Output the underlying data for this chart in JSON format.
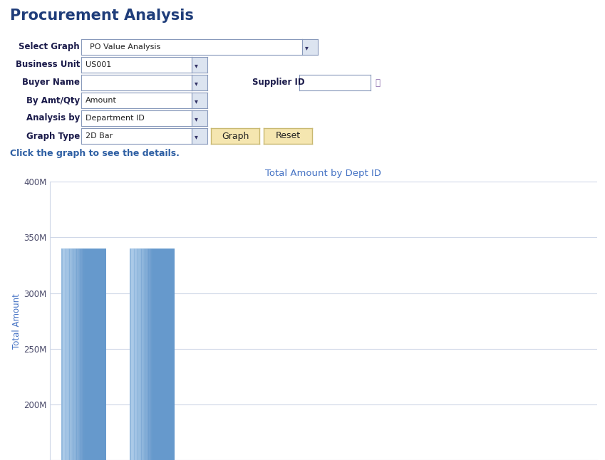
{
  "title": "Procurement Analysis",
  "title_color": "#1f3d7a",
  "title_fontsize": 15,
  "bg_color": "#ffffff",
  "chart_title": "Total Amount by Dept ID",
  "chart_title_color": "#4472c4",
  "ylabel": "Total Amount",
  "ylabel_color": "#4472c4",
  "bar_values": [
    340000000,
    340000000
  ],
  "bar_color_light": "#a8c8e8",
  "bar_color_main": "#6699cc",
  "bar_color_dark": "#4477aa",
  "ylim_min": 150000000,
  "ylim_max": 400000000,
  "yticks": [
    200000000,
    250000000,
    300000000,
    350000000,
    400000000
  ],
  "ytick_labels": [
    "200M",
    "250M",
    "300M",
    "350M",
    "400M"
  ],
  "grid_color": "#d0d8e8",
  "label_color": "#4a4a6a",
  "click_text": "Click the graph to see the details.",
  "click_text_color": "#2e5fa3",
  "form_label_color": "#1a1a4a",
  "form_label_fontsize": 8.5,
  "field_border_color": "#8899bb",
  "field_bg": "#ffffff",
  "dropdown_btn_bg": "#dce4f0",
  "button_bg": "#f5e6b0",
  "button_border": "#c8b870",
  "select_graph_value": "PO Value Analysis",
  "business_unit_value": "US001",
  "by_amt_qty_value": "Amount",
  "analysis_by_value": "Department ID",
  "graph_type_value": "2D Bar"
}
